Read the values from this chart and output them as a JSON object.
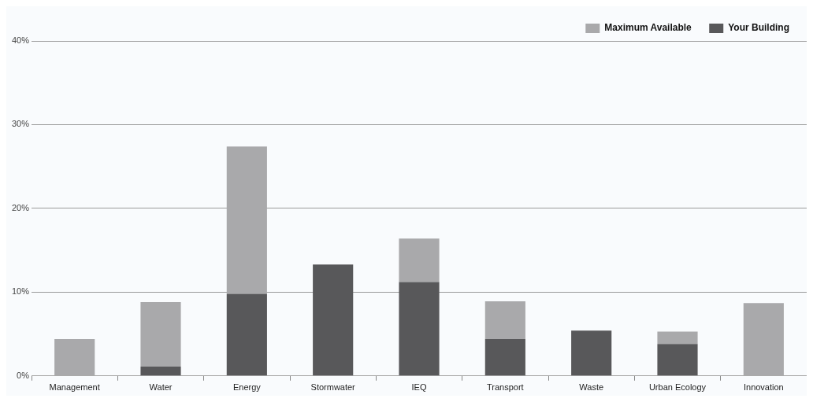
{
  "chart_data": {
    "type": "bar",
    "stacked": true,
    "categories": [
      "Management",
      "Water",
      "Energy",
      "Stormwater",
      "IEQ",
      "Transport",
      "Waste",
      "Urban Ecology",
      "Innovation"
    ],
    "series": [
      {
        "name": "Your Building",
        "color": "#58585a",
        "values": [
          0,
          1.1,
          9.8,
          13.3,
          11.2,
          4.4,
          5.4,
          3.8,
          0
        ]
      },
      {
        "name": "Maximum Available",
        "color": "#a9a9ab",
        "values": [
          4.4,
          7.7,
          17.6,
          0,
          5.2,
          4.5,
          0,
          1.5,
          8.7
        ]
      }
    ],
    "ylim": [
      0,
      40
    ],
    "yticks": [
      {
        "value": 0,
        "label": "0%"
      },
      {
        "value": 10,
        "label": "10%"
      },
      {
        "value": 20,
        "label": "20%"
      },
      {
        "value": 30,
        "label": "30%"
      },
      {
        "value": 40,
        "label": "40%"
      }
    ],
    "grid": "y",
    "legend": "top right"
  }
}
